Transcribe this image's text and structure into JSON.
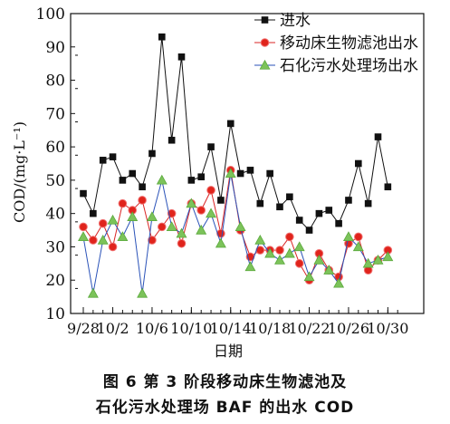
{
  "chart_data": {
    "type": "line",
    "xlabel": "日期",
    "ylabel": "COD/(mg·L⁻¹)",
    "ylim": [
      10,
      100
    ],
    "yticks": [
      10,
      20,
      30,
      40,
      50,
      60,
      70,
      80,
      90,
      100
    ],
    "xticks": [
      "9/28",
      "10/2",
      "10/6",
      "10/10",
      "10/14",
      "10/18",
      "10/22",
      "10/26",
      "10/30"
    ],
    "legend_position": "top-right",
    "x": [
      "9/28",
      "9/30",
      "10/1",
      "10/2",
      "10/3",
      "10/4",
      "10/5",
      "10/6",
      "10/7",
      "10/8",
      "10/9",
      "10/10",
      "10/11",
      "10/12",
      "10/13",
      "10/14",
      "10/15",
      "10/16",
      "10/17",
      "10/18",
      "10/19",
      "10/20",
      "10/21",
      "10/22",
      "10/23",
      "10/24",
      "10/25",
      "10/26",
      "10/27",
      "10/28",
      "10/29",
      "10/30",
      "10/31"
    ],
    "series": [
      {
        "name": "进水",
        "color": "#111111",
        "marker": "square",
        "values": [
          46,
          40,
          56,
          57,
          50,
          52,
          48,
          58,
          93,
          62,
          87,
          50,
          51,
          60,
          44,
          67,
          52,
          53,
          43,
          52,
          42,
          45,
          38,
          35,
          40,
          41,
          37,
          44,
          55,
          43,
          63,
          48,
          null
        ]
      },
      {
        "name": "移动床生物滤池出水",
        "color": "#e02020",
        "marker": "circle",
        "values": [
          36,
          32,
          37,
          30,
          43,
          41,
          44,
          32,
          36,
          40,
          31,
          43,
          41,
          47,
          34,
          53,
          35,
          27,
          29,
          29,
          29,
          33,
          25,
          20,
          28,
          23,
          21,
          31,
          33,
          23,
          26,
          29,
          null
        ]
      },
      {
        "name": "石化污水处理场出水",
        "color": "#2a52b8",
        "marker": "triangle",
        "values": [
          33,
          16,
          32,
          38,
          33,
          39,
          16,
          39,
          50,
          36,
          34,
          43,
          35,
          40,
          31,
          52,
          36,
          24,
          32,
          28,
          26,
          28,
          30,
          21,
          26,
          23,
          19,
          33,
          30,
          25,
          26,
          27,
          null
        ]
      }
    ]
  },
  "caption": {
    "line1": "图 6    第 3 阶段移动床生物滤池及",
    "line2": "石化污水处理场 BAF 的出水 COD"
  }
}
